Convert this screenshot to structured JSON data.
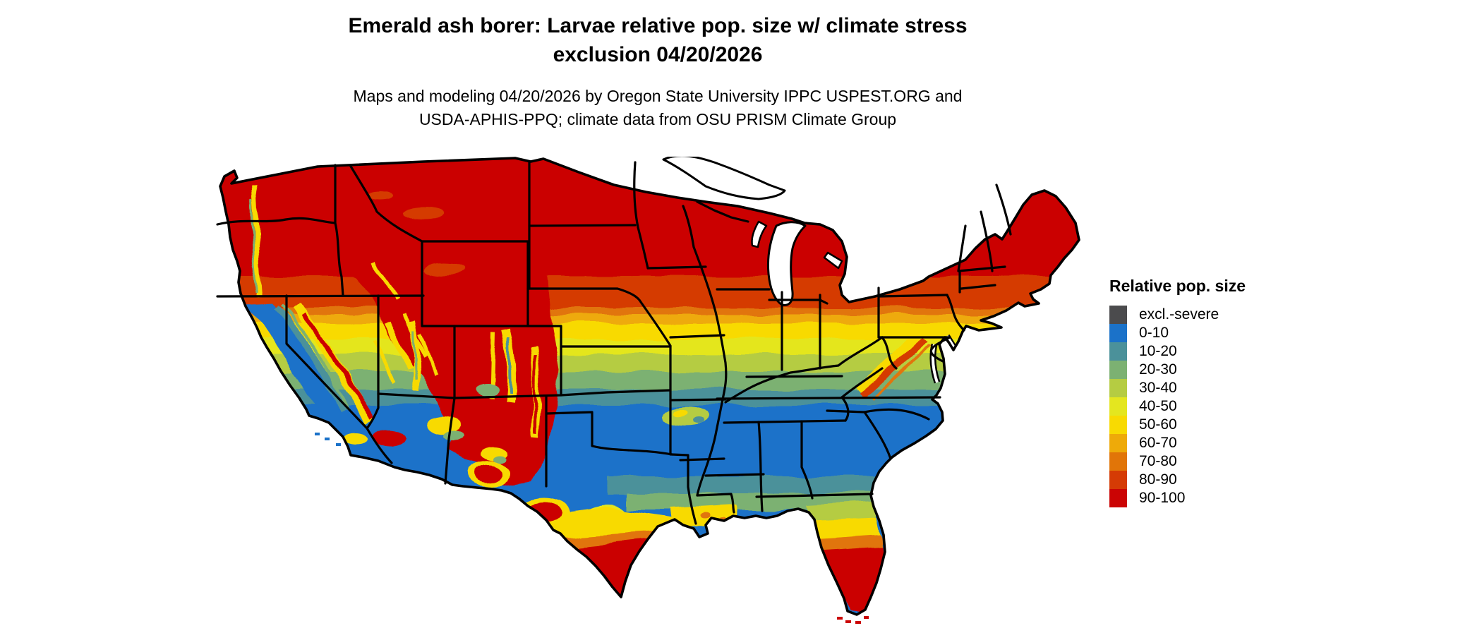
{
  "header": {
    "title_line1": "Emerald ash borer: Larvae relative pop. size w/ climate stress",
    "title_line2": "exclusion 04/20/2026",
    "subtitle_line1": "Maps and modeling 04/20/2026 by Oregon State University IPPC USPEST.ORG and",
    "subtitle_line2": "USDA-APHIS-PPQ; climate data from OSU PRISM Climate Group"
  },
  "legend": {
    "title": "Relative pop. size",
    "items": [
      {
        "label": "excl.-severe",
        "color": "#4b4b4d"
      },
      {
        "label": "0-10",
        "color": "#1b72c9"
      },
      {
        "label": "10-20",
        "color": "#4b919a"
      },
      {
        "label": "20-30",
        "color": "#7cb172"
      },
      {
        "label": "30-40",
        "color": "#b5cc42"
      },
      {
        "label": "40-50",
        "color": "#e4e61f"
      },
      {
        "label": "50-60",
        "color": "#f8da02"
      },
      {
        "label": "60-70",
        "color": "#eeaa09"
      },
      {
        "label": "70-80",
        "color": "#e17508"
      },
      {
        "label": "80-90",
        "color": "#d53b05"
      },
      {
        "label": "90-100",
        "color": "#cb0404"
      }
    ]
  }
}
